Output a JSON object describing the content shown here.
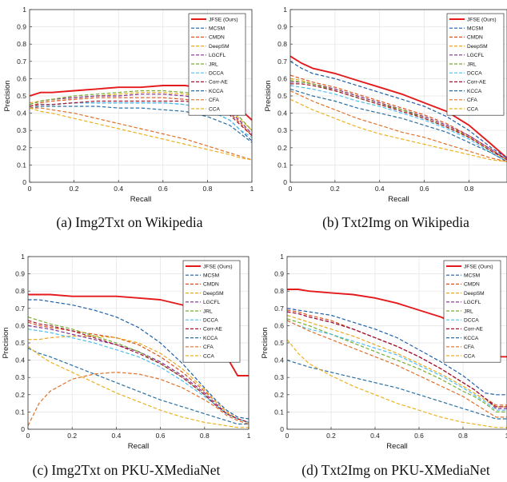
{
  "legend": {
    "series": [
      "JFSE (Ours)",
      "MCSM",
      "CMDN",
      "DeepSM",
      "LGCFL",
      "JRL",
      "DCCA",
      "Corr-AE",
      "KCCA",
      "CFA",
      "CCA"
    ],
    "colors": [
      "#e41a1c",
      "#1f5fa8",
      "#d9541e",
      "#e8a91f",
      "#7e2f8e",
      "#77ac30",
      "#4dbeee",
      "#a2142f",
      "#2a6fa0",
      "#e0702a",
      "#edb120"
    ],
    "placement": "top-right"
  },
  "axes": {
    "xlabel": "Recall",
    "ylabel": "Precision",
    "ylim": [
      0,
      1
    ],
    "grid": true,
    "y_ticks": [
      "0",
      "0.1",
      "0.2",
      "0.3",
      "0.4",
      "0.5",
      "0.6",
      "0.7",
      "0.8",
      "0.9",
      "1"
    ],
    "x_ticks": [
      "0",
      "0.2",
      "0.4",
      "0.6",
      "0.8",
      "1"
    ]
  },
  "chart_data": [
    {
      "type": "line",
      "caption": "(a) Img2Txt on Wikipedia",
      "xlim": [
        0,
        1
      ],
      "x": [
        0,
        0.05,
        0.1,
        0.2,
        0.3,
        0.4,
        0.5,
        0.6,
        0.7,
        0.8,
        0.9,
        0.95,
        1
      ],
      "series": [
        {
          "name": "JFSE (Ours)",
          "values": [
            0.5,
            0.52,
            0.52,
            0.53,
            0.54,
            0.55,
            0.55,
            0.56,
            0.56,
            0.54,
            0.48,
            0.42,
            0.36
          ]
        },
        {
          "name": "MCSM",
          "values": [
            0.44,
            0.45,
            0.45,
            0.46,
            0.46,
            0.46,
            0.46,
            0.46,
            0.45,
            0.42,
            0.36,
            0.3,
            0.24
          ]
        },
        {
          "name": "CMDN",
          "values": [
            0.44,
            0.46,
            0.47,
            0.48,
            0.49,
            0.49,
            0.49,
            0.49,
            0.48,
            0.46,
            0.4,
            0.34,
            0.27
          ]
        },
        {
          "name": "DeepSM",
          "values": [
            0.46,
            0.47,
            0.48,
            0.49,
            0.5,
            0.51,
            0.52,
            0.52,
            0.51,
            0.48,
            0.42,
            0.36,
            0.3
          ]
        },
        {
          "name": "LGCFL",
          "values": [
            0.45,
            0.47,
            0.48,
            0.49,
            0.5,
            0.5,
            0.51,
            0.51,
            0.5,
            0.48,
            0.41,
            0.35,
            0.28
          ]
        },
        {
          "name": "JRL",
          "values": [
            0.45,
            0.47,
            0.48,
            0.5,
            0.51,
            0.52,
            0.53,
            0.53,
            0.52,
            0.5,
            0.43,
            0.37,
            0.3
          ]
        },
        {
          "name": "DCCA",
          "values": [
            0.44,
            0.45,
            0.45,
            0.46,
            0.46,
            0.46,
            0.46,
            0.46,
            0.45,
            0.42,
            0.36,
            0.3,
            0.26
          ]
        },
        {
          "name": "Corr-AE",
          "values": [
            0.44,
            0.45,
            0.45,
            0.46,
            0.47,
            0.47,
            0.47,
            0.47,
            0.47,
            0.45,
            0.39,
            0.33,
            0.27
          ]
        },
        {
          "name": "KCCA",
          "values": [
            0.43,
            0.44,
            0.44,
            0.44,
            0.44,
            0.43,
            0.43,
            0.42,
            0.41,
            0.38,
            0.33,
            0.28,
            0.23
          ]
        },
        {
          "name": "CFA",
          "values": [
            0.43,
            0.43,
            0.42,
            0.4,
            0.37,
            0.34,
            0.31,
            0.28,
            0.25,
            0.21,
            0.17,
            0.15,
            0.13
          ]
        },
        {
          "name": "CCA",
          "values": [
            0.43,
            0.41,
            0.4,
            0.37,
            0.34,
            0.31,
            0.28,
            0.25,
            0.22,
            0.19,
            0.16,
            0.14,
            0.13
          ]
        }
      ]
    },
    {
      "type": "line",
      "caption": "(b) Txt2Img on Wikipedia",
      "xlim": [
        0,
        0.97
      ],
      "x": [
        0,
        0.05,
        0.1,
        0.2,
        0.3,
        0.4,
        0.5,
        0.6,
        0.7,
        0.8,
        0.9,
        0.97
      ],
      "series": [
        {
          "name": "JFSE (Ours)",
          "values": [
            0.73,
            0.69,
            0.66,
            0.63,
            0.59,
            0.55,
            0.51,
            0.46,
            0.41,
            0.33,
            0.22,
            0.14
          ]
        },
        {
          "name": "MCSM",
          "values": [
            0.7,
            0.66,
            0.63,
            0.6,
            0.56,
            0.52,
            0.48,
            0.44,
            0.38,
            0.3,
            0.2,
            0.14
          ]
        },
        {
          "name": "CMDN",
          "values": [
            0.62,
            0.6,
            0.58,
            0.55,
            0.51,
            0.47,
            0.43,
            0.39,
            0.34,
            0.27,
            0.19,
            0.13
          ]
        },
        {
          "name": "DeepSM",
          "values": [
            0.6,
            0.59,
            0.57,
            0.54,
            0.5,
            0.46,
            0.42,
            0.38,
            0.33,
            0.26,
            0.18,
            0.13
          ]
        },
        {
          "name": "LGCFL",
          "values": [
            0.58,
            0.58,
            0.57,
            0.54,
            0.5,
            0.46,
            0.42,
            0.38,
            0.33,
            0.27,
            0.19,
            0.13
          ]
        },
        {
          "name": "JRL",
          "values": [
            0.59,
            0.58,
            0.57,
            0.53,
            0.49,
            0.45,
            0.42,
            0.37,
            0.32,
            0.26,
            0.18,
            0.13
          ]
        },
        {
          "name": "DCCA",
          "values": [
            0.56,
            0.55,
            0.54,
            0.51,
            0.47,
            0.44,
            0.4,
            0.36,
            0.31,
            0.25,
            0.17,
            0.12
          ]
        },
        {
          "name": "Corr-AE",
          "values": [
            0.57,
            0.57,
            0.56,
            0.53,
            0.49,
            0.45,
            0.41,
            0.37,
            0.32,
            0.26,
            0.18,
            0.13
          ]
        },
        {
          "name": "KCCA",
          "values": [
            0.54,
            0.52,
            0.5,
            0.47,
            0.43,
            0.4,
            0.37,
            0.33,
            0.29,
            0.23,
            0.17,
            0.12
          ]
        },
        {
          "name": "CFA",
          "values": [
            0.53,
            0.5,
            0.47,
            0.42,
            0.37,
            0.33,
            0.29,
            0.26,
            0.22,
            0.18,
            0.14,
            0.12
          ]
        },
        {
          "name": "CCA",
          "values": [
            0.48,
            0.45,
            0.42,
            0.37,
            0.32,
            0.28,
            0.25,
            0.22,
            0.19,
            0.16,
            0.13,
            0.12
          ]
        }
      ]
    },
    {
      "type": "line",
      "caption": "(c) Img2Txt on PKU-XMediaNet",
      "xlim": [
        0,
        1
      ],
      "x": [
        0,
        0.05,
        0.1,
        0.2,
        0.3,
        0.4,
        0.5,
        0.6,
        0.7,
        0.8,
        0.85,
        0.9,
        0.95,
        1
      ],
      "series": [
        {
          "name": "JFSE (Ours)",
          "values": [
            0.78,
            0.78,
            0.78,
            0.77,
            0.77,
            0.77,
            0.76,
            0.75,
            0.72,
            0.66,
            0.56,
            0.42,
            0.31,
            0.31
          ]
        },
        {
          "name": "MCSM",
          "values": [
            0.75,
            0.75,
            0.74,
            0.72,
            0.69,
            0.65,
            0.59,
            0.5,
            0.38,
            0.24,
            0.17,
            0.11,
            0.07,
            0.06
          ]
        },
        {
          "name": "CMDN",
          "values": [
            0.62,
            0.6,
            0.59,
            0.57,
            0.55,
            0.53,
            0.49,
            0.42,
            0.33,
            0.22,
            0.16,
            0.1,
            0.06,
            0.04
          ]
        },
        {
          "name": "DeepSM",
          "values": [
            0.52,
            0.52,
            0.53,
            0.54,
            0.54,
            0.53,
            0.5,
            0.44,
            0.35,
            0.23,
            0.16,
            0.1,
            0.06,
            0.04
          ]
        },
        {
          "name": "LGCFL",
          "values": [
            0.6,
            0.59,
            0.58,
            0.55,
            0.52,
            0.49,
            0.45,
            0.39,
            0.31,
            0.21,
            0.15,
            0.09,
            0.06,
            0.04
          ]
        },
        {
          "name": "JRL",
          "values": [
            0.65,
            0.63,
            0.61,
            0.58,
            0.54,
            0.5,
            0.45,
            0.38,
            0.3,
            0.2,
            0.14,
            0.09,
            0.06,
            0.04
          ]
        },
        {
          "name": "DCCA",
          "values": [
            0.58,
            0.57,
            0.56,
            0.53,
            0.5,
            0.46,
            0.42,
            0.36,
            0.28,
            0.19,
            0.14,
            0.09,
            0.06,
            0.04
          ]
        },
        {
          "name": "Corr-AE",
          "values": [
            0.63,
            0.61,
            0.6,
            0.57,
            0.53,
            0.49,
            0.44,
            0.38,
            0.3,
            0.2,
            0.14,
            0.09,
            0.06,
            0.04
          ]
        },
        {
          "name": "KCCA",
          "values": [
            0.47,
            0.44,
            0.42,
            0.37,
            0.32,
            0.27,
            0.22,
            0.17,
            0.13,
            0.09,
            0.07,
            0.05,
            0.03,
            0.03
          ]
        },
        {
          "name": "CFA",
          "values": [
            0.02,
            0.15,
            0.22,
            0.29,
            0.32,
            0.33,
            0.32,
            0.29,
            0.24,
            0.17,
            0.13,
            0.08,
            0.05,
            0.03
          ]
        },
        {
          "name": "CCA",
          "values": [
            0.48,
            0.43,
            0.39,
            0.33,
            0.27,
            0.21,
            0.16,
            0.11,
            0.07,
            0.04,
            0.03,
            0.02,
            0.01,
            0.01
          ]
        }
      ]
    },
    {
      "type": "line",
      "caption": "(d) Txt2Img on PKU-XMediaNet",
      "xlim": [
        0,
        1
      ],
      "x": [
        0,
        0.05,
        0.1,
        0.2,
        0.3,
        0.4,
        0.5,
        0.6,
        0.7,
        0.8,
        0.85,
        0.9,
        0.95,
        1
      ],
      "series": [
        {
          "name": "JFSE (Ours)",
          "values": [
            0.81,
            0.81,
            0.8,
            0.79,
            0.78,
            0.76,
            0.73,
            0.69,
            0.65,
            0.59,
            0.55,
            0.49,
            0.42,
            0.42
          ]
        },
        {
          "name": "MCSM",
          "values": [
            0.7,
            0.69,
            0.68,
            0.66,
            0.62,
            0.58,
            0.53,
            0.46,
            0.39,
            0.31,
            0.26,
            0.21,
            0.2,
            0.2
          ]
        },
        {
          "name": "CMDN",
          "values": [
            0.69,
            0.68,
            0.66,
            0.63,
            0.58,
            0.53,
            0.48,
            0.42,
            0.35,
            0.27,
            0.23,
            0.18,
            0.14,
            0.14
          ]
        },
        {
          "name": "DeepSM",
          "values": [
            0.66,
            0.64,
            0.62,
            0.58,
            0.54,
            0.49,
            0.44,
            0.38,
            0.32,
            0.25,
            0.21,
            0.17,
            0.13,
            0.13
          ]
        },
        {
          "name": "LGCFL",
          "values": [
            0.68,
            0.67,
            0.65,
            0.62,
            0.58,
            0.53,
            0.48,
            0.42,
            0.35,
            0.27,
            0.23,
            0.18,
            0.12,
            0.12
          ]
        },
        {
          "name": "JRL",
          "values": [
            0.64,
            0.62,
            0.6,
            0.55,
            0.5,
            0.45,
            0.4,
            0.35,
            0.29,
            0.22,
            0.19,
            0.15,
            0.1,
            0.1
          ]
        },
        {
          "name": "DCCA",
          "values": [
            0.63,
            0.6,
            0.58,
            0.55,
            0.51,
            0.47,
            0.43,
            0.37,
            0.31,
            0.24,
            0.2,
            0.16,
            0.11,
            0.11
          ]
        },
        {
          "name": "Corr-AE",
          "values": [
            0.68,
            0.67,
            0.65,
            0.62,
            0.58,
            0.53,
            0.48,
            0.42,
            0.35,
            0.27,
            0.23,
            0.18,
            0.13,
            0.13
          ]
        },
        {
          "name": "KCCA",
          "values": [
            0.4,
            0.38,
            0.36,
            0.33,
            0.3,
            0.27,
            0.24,
            0.2,
            0.16,
            0.12,
            0.1,
            0.08,
            0.06,
            0.06
          ]
        },
        {
          "name": "CFA",
          "values": [
            0.63,
            0.6,
            0.57,
            0.52,
            0.47,
            0.42,
            0.37,
            0.31,
            0.25,
            0.19,
            0.15,
            0.11,
            0.07,
            0.07
          ]
        },
        {
          "name": "CCA",
          "values": [
            0.52,
            0.44,
            0.38,
            0.31,
            0.25,
            0.2,
            0.15,
            0.11,
            0.07,
            0.04,
            0.03,
            0.02,
            0.01,
            0.01
          ]
        }
      ]
    }
  ]
}
